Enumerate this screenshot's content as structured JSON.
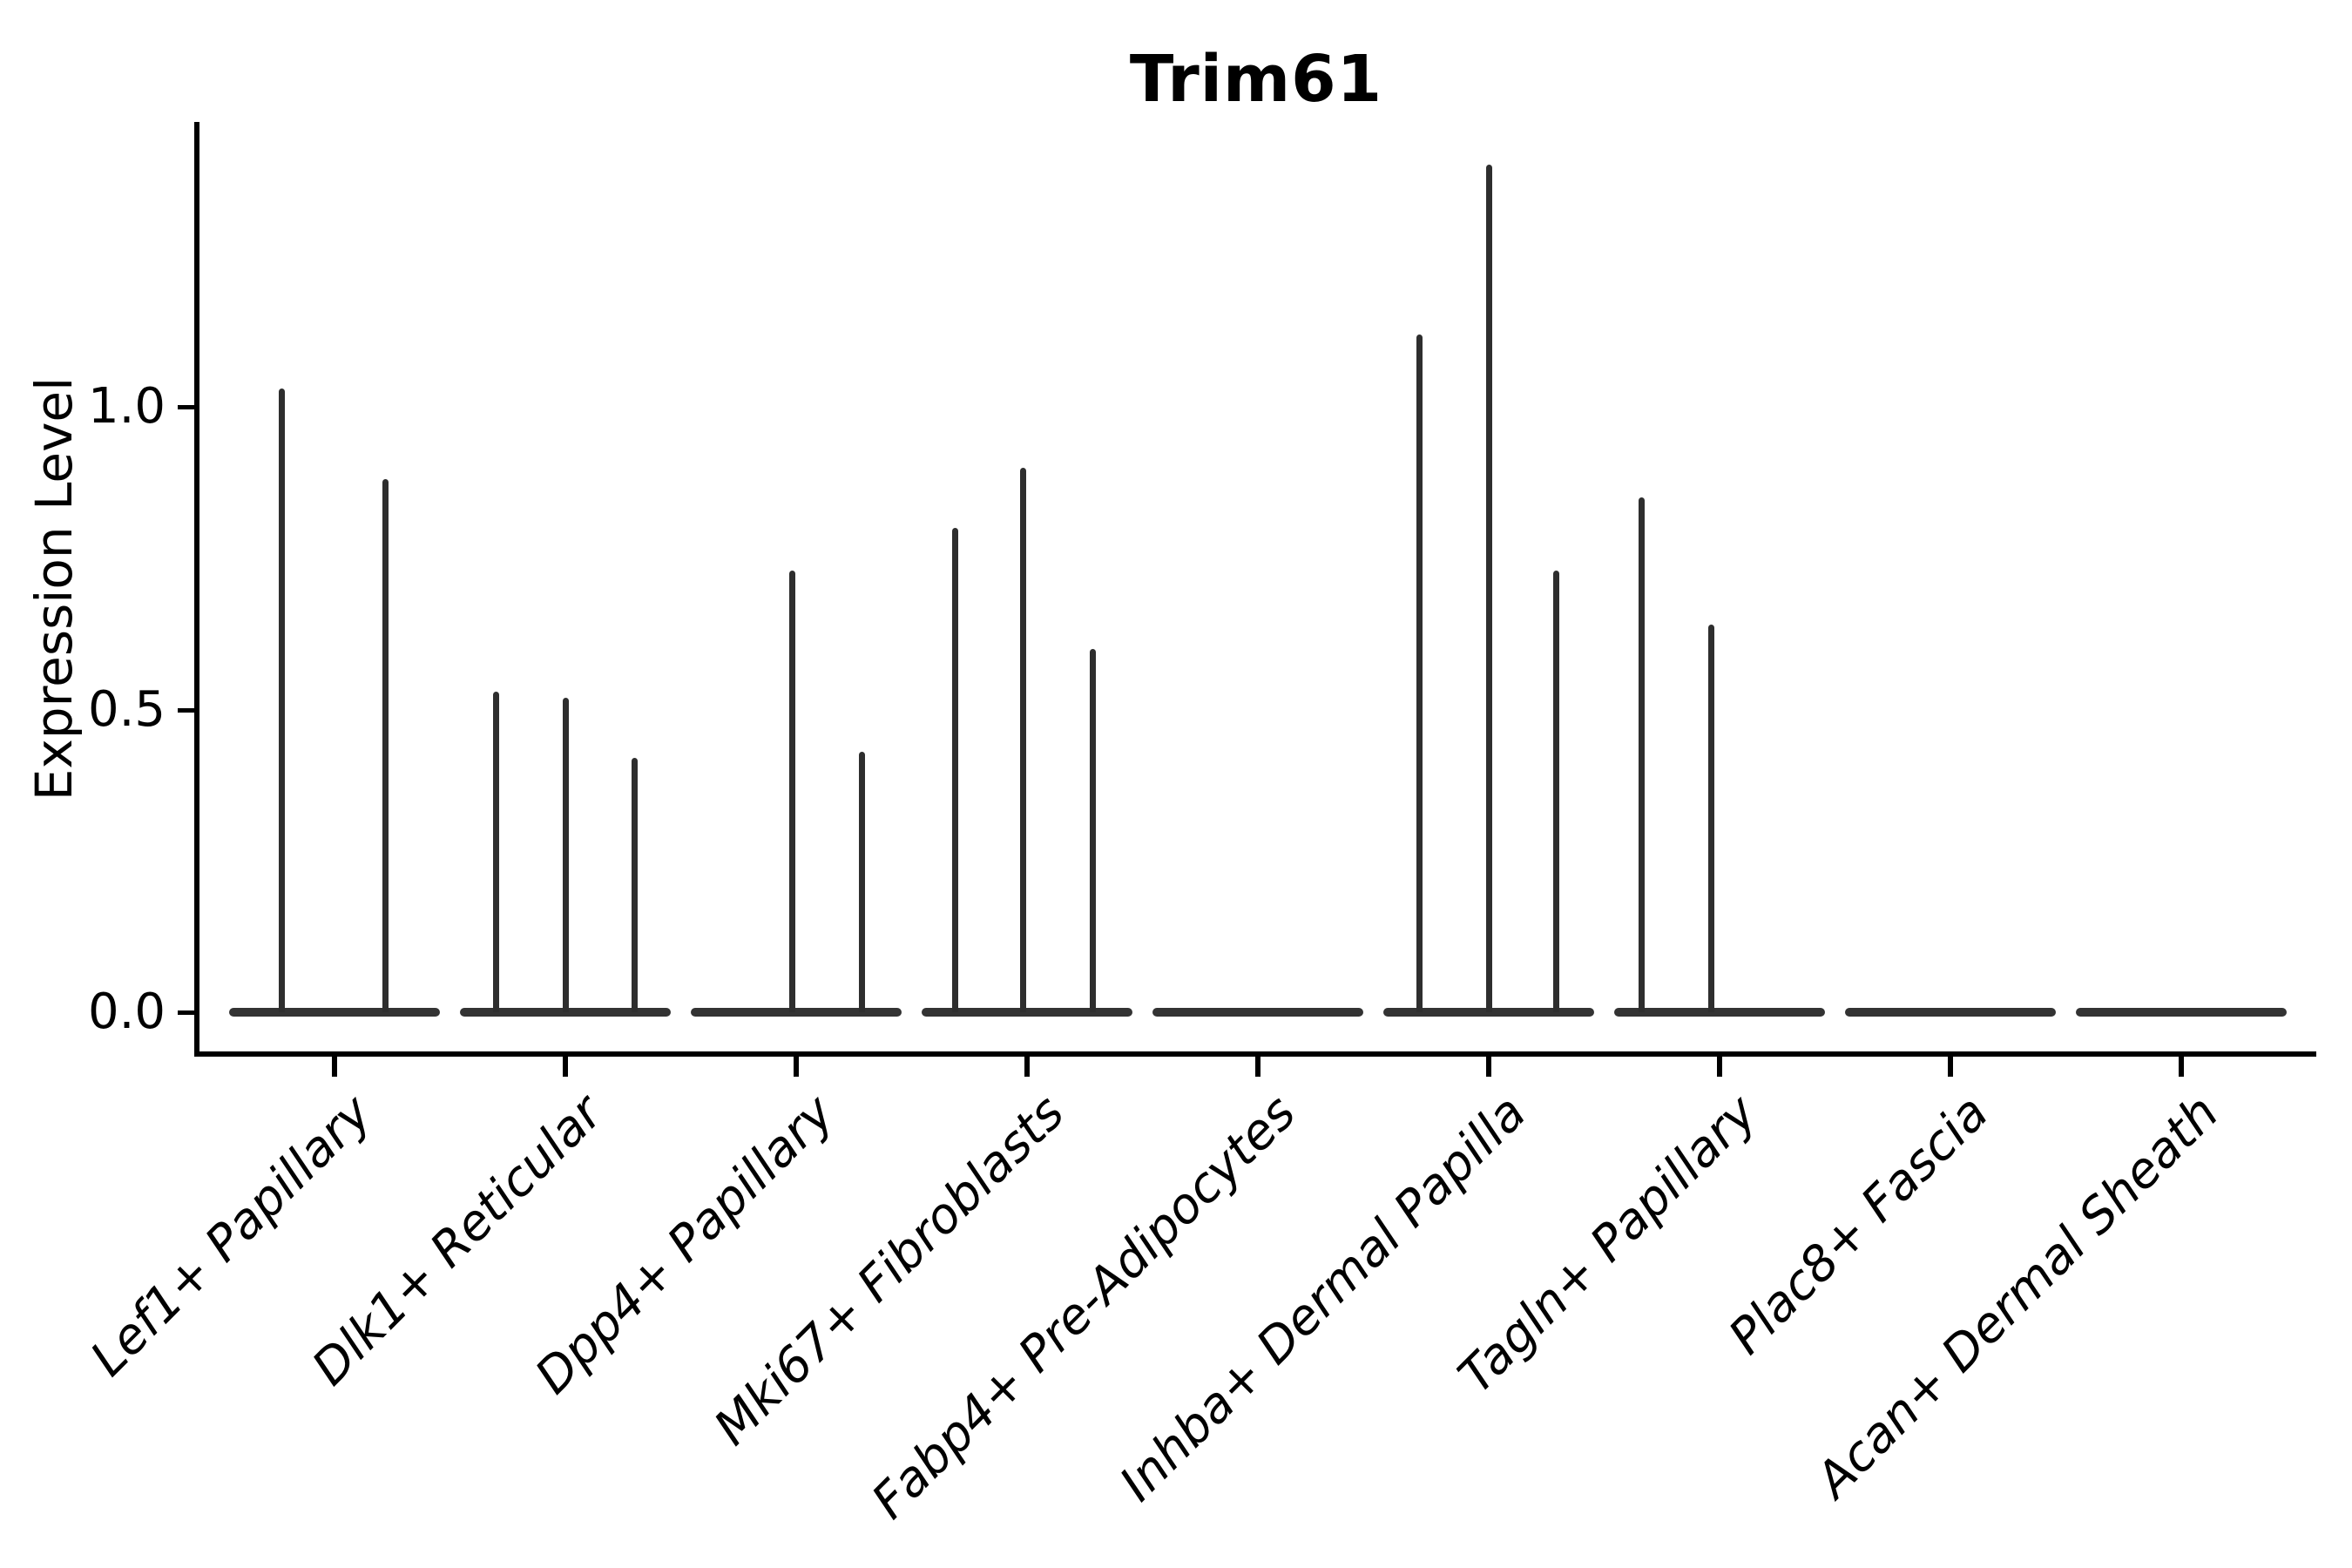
{
  "figure": {
    "title": "Trim61",
    "y_axis": {
      "label": "Expression Level",
      "tick_labels": [
        "0.0",
        "0.5",
        "1.0"
      ]
    }
  },
  "chart_data": {
    "type": "violin",
    "title": "Trim61",
    "xlabel": "",
    "ylabel": "Expression Level",
    "ylim": [
      -0.07,
      1.48
    ],
    "yticks": [
      0.0,
      0.5,
      1.0
    ],
    "grid": false,
    "legend": false,
    "x_tick_rotation": 45,
    "x_tick_style": "italic",
    "categories": [
      "Lef1+ Papillary",
      "Dlk1+ Reticular",
      "Dpp4+ Papillary",
      "Mki67+ Fibroblasts",
      "Fabp4+ Pre-Adipocytes",
      "Inhba+ Dermal Papilla",
      "Tagln+ Papillary",
      "Plac8+ Fascia",
      "Acan+ Dermal Sheath"
    ],
    "violins": [
      {
        "category": "Lef1+ Papillary",
        "baseline_value": 0.0,
        "spikes": [
          {
            "pos": 0.25,
            "peak": 1.03
          },
          {
            "pos": 0.74,
            "peak": 0.88
          }
        ]
      },
      {
        "category": "Dlk1+ Reticular",
        "baseline_value": 0.0,
        "spikes": [
          {
            "pos": 0.17,
            "peak": 0.53
          },
          {
            "pos": 0.5,
            "peak": 0.52
          },
          {
            "pos": 0.83,
            "peak": 0.42
          }
        ]
      },
      {
        "category": "Dpp4+ Papillary",
        "baseline_value": 0.0,
        "spikes": [
          {
            "pos": 0.48,
            "peak": 0.73
          },
          {
            "pos": 0.81,
            "peak": 0.43
          }
        ]
      },
      {
        "category": "Mki67+ Fibroblasts",
        "baseline_value": 0.0,
        "spikes": [
          {
            "pos": 0.16,
            "peak": 0.8
          },
          {
            "pos": 0.48,
            "peak": 0.9
          },
          {
            "pos": 0.81,
            "peak": 0.6
          }
        ]
      },
      {
        "category": "Fabp4+ Pre-Adipocytes",
        "baseline_value": 0.0,
        "spikes": []
      },
      {
        "category": "Inhba+ Dermal Papilla",
        "baseline_value": 0.0,
        "spikes": [
          {
            "pos": 0.17,
            "peak": 1.12
          },
          {
            "pos": 0.5,
            "peak": 1.4
          },
          {
            "pos": 0.82,
            "peak": 0.73
          }
        ]
      },
      {
        "category": "Tagln+ Papillary",
        "baseline_value": 0.0,
        "spikes": [
          {
            "pos": 0.13,
            "peak": 0.85
          },
          {
            "pos": 0.46,
            "peak": 0.64
          }
        ]
      },
      {
        "category": "Plac8+ Fascia",
        "baseline_value": 0.0,
        "spikes": []
      },
      {
        "category": "Acan+ Dermal Sheath",
        "baseline_value": 0.0,
        "spikes": []
      }
    ],
    "colors": {
      "violin_line": "#2e2e2e",
      "violin_baseline": "#333333",
      "axis": "#000000",
      "text": "#000000",
      "background": "#ffffff"
    }
  }
}
